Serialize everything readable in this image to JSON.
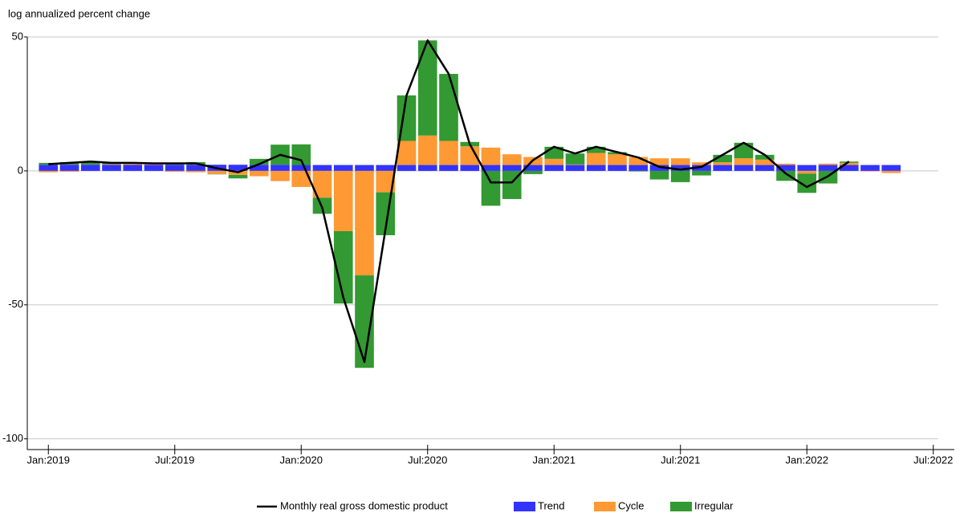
{
  "chart_data": {
    "type": "bar",
    "stacked": true,
    "y_label": "log annualized percent change",
    "x": [
      "2019-01",
      "2019-02",
      "2019-03",
      "2019-04",
      "2019-05",
      "2019-06",
      "2019-07",
      "2019-08",
      "2019-09",
      "2019-10",
      "2019-11",
      "2019-12",
      "2020-01",
      "2020-02",
      "2020-03",
      "2020-04",
      "2020-05",
      "2020-06",
      "2020-07",
      "2020-08",
      "2020-09",
      "2020-10",
      "2020-11",
      "2020-12",
      "2021-01",
      "2021-02",
      "2021-03",
      "2021-04",
      "2021-05",
      "2021-06",
      "2021-07",
      "2021-08",
      "2021-09",
      "2021-10",
      "2021-11",
      "2021-12",
      "2022-01",
      "2022-02",
      "2022-03",
      "2022-04",
      "2022-05"
    ],
    "series": [
      {
        "name": "Monthly real gross domestic product",
        "type": "line",
        "color": "#000000",
        "values": [
          2.5,
          3,
          3.5,
          3,
          3,
          2.8,
          2.8,
          2.8,
          1,
          -0.5,
          2.5,
          6,
          4,
          -13.8,
          -47.3,
          -71.3,
          -21.8,
          28.2,
          48.7,
          36.2,
          10,
          -4.3,
          -4.3,
          4,
          9,
          6.5,
          9,
          7,
          5,
          1.5,
          0.5,
          1.5,
          6,
          10.5,
          6,
          -1,
          -6,
          -2,
          3.5,
          null,
          null
        ]
      },
      {
        "name": "Trend",
        "type": "bar",
        "color": "#3333ff",
        "values": [
          2.3,
          2.3,
          2.3,
          2.3,
          2.3,
          2.3,
          2.3,
          2.3,
          2.3,
          2.3,
          2.3,
          2.3,
          2.2,
          2.2,
          2.2,
          2.2,
          2.2,
          2.2,
          2.2,
          2.2,
          2.2,
          2.2,
          2.2,
          2.2,
          2.2,
          2.2,
          2.2,
          2.2,
          2.2,
          2.2,
          2.2,
          2.2,
          2.2,
          2.2,
          2.2,
          2.2,
          2.2,
          2.2,
          2.2,
          2.2,
          2.2
        ]
      },
      {
        "name": "Cycle",
        "type": "bar",
        "color": "#ff9933",
        "values": [
          -0.5,
          -0.3,
          0,
          0.2,
          0.4,
          0.3,
          -0.3,
          -0.5,
          -1.2,
          -1.5,
          -2,
          -3.8,
          -6,
          -10,
          -22.5,
          -39,
          -8,
          9,
          11,
          9,
          7,
          6.5,
          4,
          3,
          2.3,
          0.2,
          4.5,
          4,
          3,
          2.5,
          2.5,
          1,
          1,
          2.5,
          2,
          0.5,
          -1,
          0.5,
          0.8,
          -0.2,
          -0.8
        ]
      },
      {
        "name": "Irregular",
        "type": "bar",
        "color": "#339933",
        "values": [
          0.7,
          1,
          1.2,
          0.5,
          0.3,
          0.2,
          0.8,
          1,
          -0.1,
          -1.3,
          2.2,
          7.5,
          7.7,
          -6,
          -27,
          -34.5,
          -16,
          17,
          35.5,
          25,
          1.6,
          -13,
          -10.5,
          -1.2,
          4.5,
          4.1,
          2.3,
          0.8,
          -0.2,
          -3.2,
          -4.2,
          -1.7,
          2.8,
          5.8,
          1.8,
          -3.7,
          -7.2,
          -4.7,
          0.5,
          null,
          null
        ]
      }
    ],
    "xlim": [
      "2018-12",
      "2022-08"
    ],
    "xticks": [
      {
        "value": "2019-01",
        "label": "Jan:2019"
      },
      {
        "value": "2019-07",
        "label": "Jul:2019"
      },
      {
        "value": "2020-01",
        "label": "Jan:2020"
      },
      {
        "value": "2020-07",
        "label": "Jul:2020"
      },
      {
        "value": "2021-01",
        "label": "Jan:2021"
      },
      {
        "value": "2021-07",
        "label": "Jul:2021"
      },
      {
        "value": "2022-01",
        "label": "Jan:2022"
      },
      {
        "value": "2022-07",
        "label": "Jul:2022"
      }
    ],
    "ylim": [
      -104,
      50
    ],
    "yticks": [
      -100,
      -50,
      0,
      50
    ],
    "grid": true,
    "legend": "bottom"
  }
}
